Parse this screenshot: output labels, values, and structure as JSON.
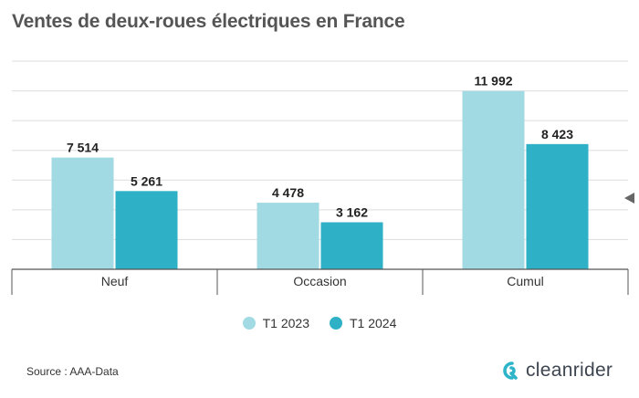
{
  "title": "Ventes de deux-roues électriques en France",
  "source": "Source : AAA-Data",
  "brand": {
    "name": "cleanrider",
    "logo_color": "#2eb4c9"
  },
  "colors": {
    "t1_2023": "#a1dae3",
    "t1_2024": "#2eb1c6"
  },
  "chart_data": {
    "type": "bar",
    "categories": [
      "Neuf",
      "Occasion",
      "Cumul"
    ],
    "series": [
      {
        "name": "T1 2023",
        "values": [
          7514,
          4478,
          11992
        ],
        "labels": [
          "7 514",
          "4 478",
          "11 992"
        ]
      },
      {
        "name": "T1 2024",
        "values": [
          5261,
          3162,
          8423
        ],
        "labels": [
          "5 261",
          "3 162",
          "8 423"
        ]
      }
    ],
    "ylim": [
      0,
      14000
    ],
    "gridlines": true,
    "legend": "bottom-center"
  }
}
